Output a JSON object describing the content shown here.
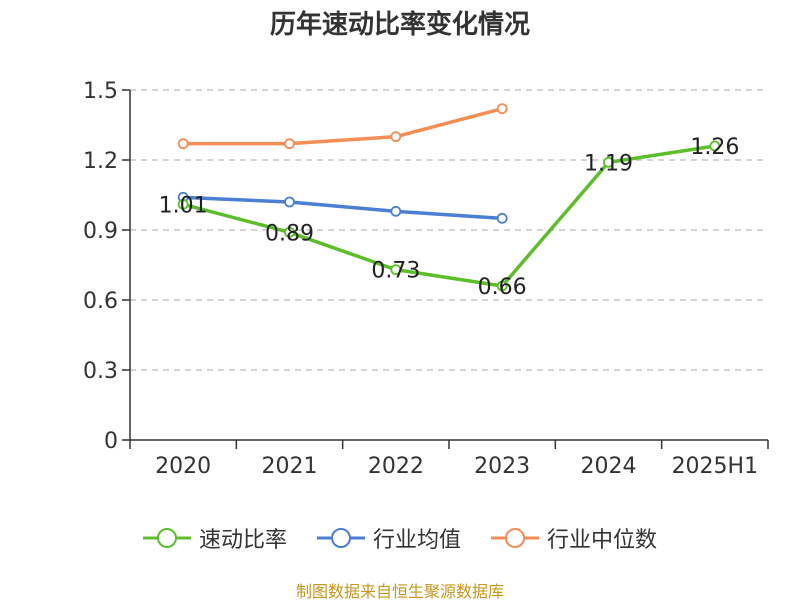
{
  "chart_data": {
    "type": "line",
    "title": "历年速动比率变化情况",
    "categories": [
      "2020",
      "2021",
      "2022",
      "2023",
      "2024",
      "2025H1"
    ],
    "ylim": [
      0,
      1.5
    ],
    "yticks": [
      "0",
      "0.3",
      "0.6",
      "0.9",
      "1.2",
      "1.5"
    ],
    "ytick_values": [
      0,
      0.3,
      0.6,
      0.9,
      1.2,
      1.5
    ],
    "grid": true,
    "legend_position": "bottom",
    "series": [
      {
        "name": "速动比率",
        "color": "#5cbf2a",
        "values": [
          1.01,
          0.89,
          0.73,
          0.66,
          1.19,
          1.26
        ],
        "labels": [
          "1.01",
          "0.89",
          "0.73",
          "0.66",
          "1.19",
          "1.26"
        ]
      },
      {
        "name": "行业均值",
        "color": "#4a7fd4",
        "values": [
          1.04,
          1.02,
          0.98,
          0.95,
          null,
          null
        ]
      },
      {
        "name": "行业中位数",
        "color": "#f58d55",
        "values": [
          1.27,
          1.27,
          1.3,
          1.42,
          null,
          null
        ]
      }
    ]
  },
  "source_note": "制图数据来自恒生聚源数据库"
}
